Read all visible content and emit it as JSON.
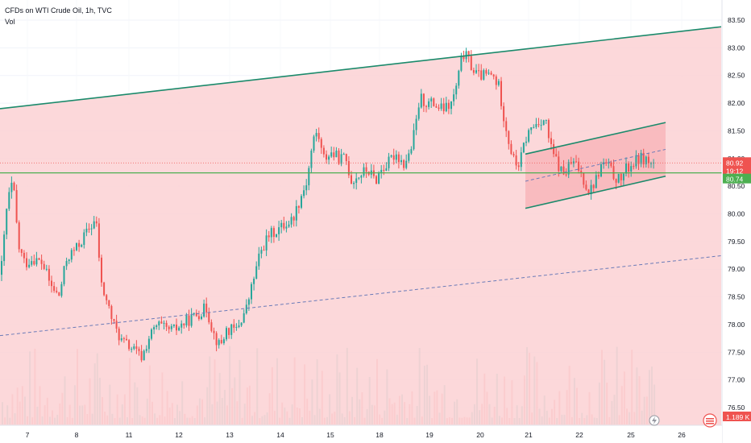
{
  "header": {
    "title": "CFDs on WTI Crude Oil, 1h, TVC",
    "volume_label": "Vol"
  },
  "colors": {
    "up": "#26a69a",
    "down": "#ef5350",
    "band_fill": "#fbd1d3",
    "channel_fill": "#f7a8ad",
    "trendline": "#1b8a6b",
    "dashed_line": "#6b7bb8",
    "horizontal_line": "#4caf50",
    "current_price_badge": "#ef5350",
    "level_badge": "#4caf50",
    "volume_badge": "#ef5350"
  },
  "price_axis": {
    "min": 76.25,
    "max": 83.5,
    "labels": [
      "83.50",
      "83.00",
      "82.50",
      "82.00",
      "81.50",
      "81.00",
      "80.50",
      "80.00",
      "79.50",
      "79.00",
      "78.50",
      "78.00",
      "77.50",
      "77.00",
      "76.50"
    ]
  },
  "time_axis": {
    "labels": [
      "7",
      "8",
      "11",
      "12",
      "13",
      "14",
      "15",
      "18",
      "19",
      "20",
      "21",
      "22",
      "25",
      "26"
    ]
  },
  "badges": {
    "current_price": "80.92",
    "countdown": "19:12",
    "level": "80.74",
    "volume": "1.189 K"
  },
  "chart_data": {
    "type": "candlestick",
    "title": "CFDs on WTI Crude Oil, 1h, TVC",
    "ylim": [
      76.25,
      83.5
    ],
    "x_labels": [
      "7",
      "8",
      "11",
      "12",
      "13",
      "14",
      "15",
      "18",
      "19",
      "20",
      "21",
      "22",
      "25",
      "26"
    ],
    "current_price": 80.92,
    "horizontal_level": 80.74,
    "volume_current": "1.189 K",
    "price_path": [
      [
        0,
        78.9
      ],
      [
        8,
        80.2
      ],
      [
        15,
        80.6
      ],
      [
        22,
        79.4
      ],
      [
        30,
        79.1
      ],
      [
        40,
        79.2
      ],
      [
        52,
        79.1
      ],
      [
        62,
        78.7
      ],
      [
        72,
        78.5
      ],
      [
        82,
        79.2
      ],
      [
        95,
        79.4
      ],
      [
        108,
        79.7
      ],
      [
        118,
        79.9
      ],
      [
        125,
        78.7
      ],
      [
        132,
        78.4
      ],
      [
        140,
        78.0
      ],
      [
        150,
        77.7
      ],
      [
        160,
        77.6
      ],
      [
        168,
        77.5
      ],
      [
        175,
        77.4
      ],
      [
        185,
        77.8
      ],
      [
        195,
        78.0
      ],
      [
        205,
        77.9
      ],
      [
        215,
        77.9
      ],
      [
        225,
        78.0
      ],
      [
        235,
        78.1
      ],
      [
        245,
        78.2
      ],
      [
        255,
        78.3
      ],
      [
        265,
        77.8
      ],
      [
        272,
        77.6
      ],
      [
        280,
        77.9
      ],
      [
        292,
        77.9
      ],
      [
        305,
        78.3
      ],
      [
        315,
        78.9
      ],
      [
        322,
        79.3
      ],
      [
        332,
        79.6
      ],
      [
        342,
        79.7
      ],
      [
        352,
        79.8
      ],
      [
        362,
        79.9
      ],
      [
        372,
        80.3
      ],
      [
        380,
        80.6
      ],
      [
        387,
        81.3
      ],
      [
        393,
        81.5
      ],
      [
        400,
        81.0
      ],
      [
        410,
        81.1
      ],
      [
        420,
        81.0
      ],
      [
        428,
        81.0
      ],
      [
        435,
        80.6
      ],
      [
        445,
        80.7
      ],
      [
        455,
        80.8
      ],
      [
        465,
        80.6
      ],
      [
        472,
        80.8
      ],
      [
        480,
        80.9
      ],
      [
        490,
        81.1
      ],
      [
        500,
        80.9
      ],
      [
        508,
        81.1
      ],
      [
        515,
        81.6
      ],
      [
        520,
        82.1
      ],
      [
        528,
        82.0
      ],
      [
        536,
        82.0
      ],
      [
        545,
        81.9
      ],
      [
        552,
        81.9
      ],
      [
        560,
        82.0
      ],
      [
        567,
        82.4
      ],
      [
        573,
        82.9
      ],
      [
        580,
        82.8
      ],
      [
        586,
        82.6
      ],
      [
        592,
        82.5
      ],
      [
        600,
        82.5
      ],
      [
        610,
        82.5
      ],
      [
        618,
        82.3
      ],
      [
        625,
        81.7
      ],
      [
        632,
        81.2
      ],
      [
        638,
        80.9
      ],
      [
        644,
        80.9
      ],
      [
        650,
        81.3
      ],
      [
        656,
        81.5
      ],
      [
        662,
        81.6
      ],
      [
        670,
        81.7
      ],
      [
        676,
        81.7
      ],
      [
        682,
        81.2
      ],
      [
        688,
        81.0
      ],
      [
        694,
        80.8
      ],
      [
        700,
        80.7
      ],
      [
        706,
        80.9
      ],
      [
        712,
        80.9
      ],
      [
        718,
        80.8
      ],
      [
        724,
        80.6
      ],
      [
        730,
        80.4
      ],
      [
        738,
        80.6
      ],
      [
        746,
        80.9
      ],
      [
        752,
        80.9
      ],
      [
        760,
        80.7
      ],
      [
        768,
        80.6
      ],
      [
        776,
        80.8
      ],
      [
        784,
        80.9
      ],
      [
        792,
        81.0
      ],
      [
        800,
        81.0
      ],
      [
        806,
        80.9
      ],
      [
        812,
        80.92
      ]
    ],
    "trendlines": [
      {
        "name": "upper_trendline",
        "points": [
          [
            0,
            81.9
          ],
          [
            895,
            83.38
          ]
        ]
      },
      {
        "name": "lower_dashed_trendline",
        "points": [
          [
            0,
            77.8
          ],
          [
            930,
            79.3
          ]
        ]
      },
      {
        "name": "channel_upper",
        "points": [
          [
            652,
            81.08
          ],
          [
            826,
            81.65
          ]
        ]
      },
      {
        "name": "channel_lower",
        "points": [
          [
            652,
            80.1
          ],
          [
            826,
            80.68
          ]
        ]
      }
    ]
  }
}
